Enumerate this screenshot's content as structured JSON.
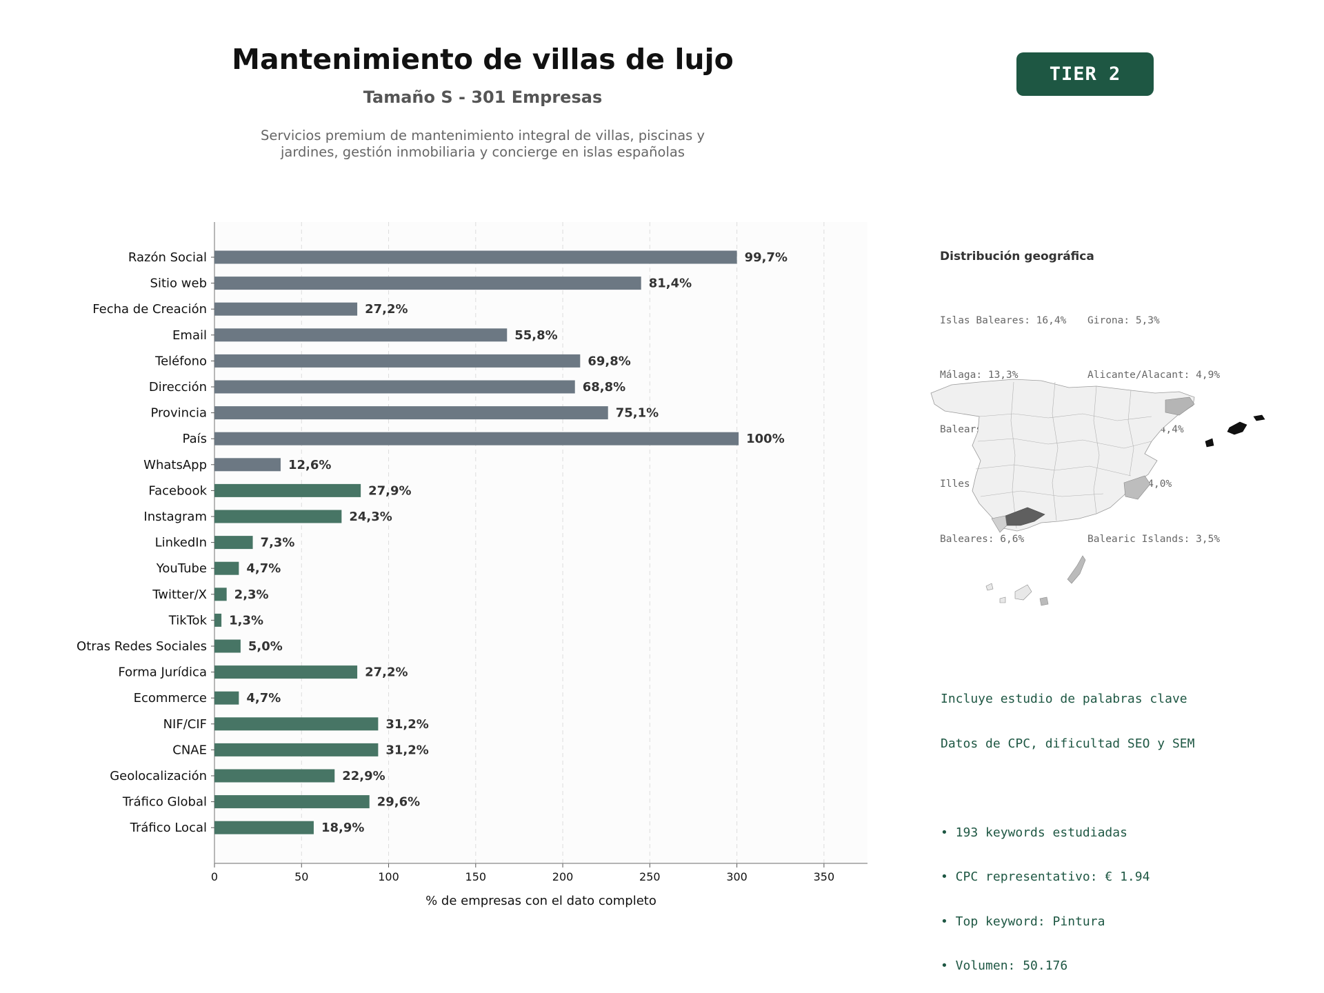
{
  "header": {
    "title": "Mantenimiento de villas de lujo",
    "subtitle": "Tamaño S - 301 Empresas",
    "description_line1": "Servicios premium de mantenimiento integral de villas, piscinas y",
    "description_line2": "jardines, gestión inmobiliaria y concierge en islas españolas",
    "tier_badge": "TIER 2"
  },
  "chart_data": {
    "type": "bar",
    "orientation": "horizontal",
    "title": "",
    "xlabel": "% de empresas con el dato completo",
    "ylabel": "",
    "xlim": [
      0,
      375
    ],
    "xticks": [
      0,
      50,
      100,
      150,
      200,
      250,
      300,
      350
    ],
    "grid": "vertical dashed",
    "categories": [
      "Razón Social",
      "Sitio web",
      "Fecha de Creación",
      "Email",
      "Teléfono",
      "Dirección",
      "Provincia",
      "País",
      "WhatsApp",
      "Facebook",
      "Instagram",
      "LinkedIn",
      "YouTube",
      "Twitter/X",
      "TikTok",
      "Otras Redes Sociales",
      "Forma Jurídica",
      "Ecommerce",
      "NIF/CIF",
      "CNAE",
      "Geolocalización",
      "Tráfico Global",
      "Tráfico Local"
    ],
    "values": [
      300,
      245,
      82,
      168,
      210,
      207,
      226,
      301,
      38,
      84,
      73,
      22,
      14,
      7,
      4,
      15,
      82,
      14,
      94,
      94,
      69,
      89,
      57
    ],
    "data_labels": [
      "99,7%",
      "81,4%",
      "27,2%",
      "55,8%",
      "69,8%",
      "68,8%",
      "75,1%",
      "100%",
      "12,6%",
      "27,9%",
      "24,3%",
      "7,3%",
      "4,7%",
      "2,3%",
      "1,3%",
      "5,0%",
      "27,2%",
      "4,7%",
      "31,2%",
      "31,2%",
      "22,9%",
      "29,6%",
      "18,9%"
    ],
    "bar_groups": [
      "basic",
      "basic",
      "basic",
      "basic",
      "basic",
      "basic",
      "basic",
      "basic",
      "basic",
      "digital",
      "digital",
      "digital",
      "digital",
      "digital",
      "digital",
      "digital",
      "digital",
      "digital",
      "digital",
      "digital",
      "digital",
      "digital",
      "digital"
    ],
    "colors": {
      "basic": "#6c7883",
      "digital": "#477565"
    }
  },
  "geo": {
    "title": "Distribución geográfica",
    "col1": [
      "Islas Baleares: 16,4%",
      "Málaga: 13,3%",
      "Balears, Illes: 13,3%",
      "Illes Balears: 13,3%",
      "Baleares: 6,6%"
    ],
    "col2": [
      "Girona: 5,3%",
      "Alicante/Alacant: 4,9%",
      "Las Palmas: 4,4%",
      "Alicante: 4,0%",
      "Balearic Islands: 3,5%"
    ]
  },
  "keywords": {
    "line1": "Incluye estudio de palabras clave",
    "line2": "Datos de CPC, dificultad SEO y SEM",
    "bullets": [
      "• 193 keywords estudiadas",
      "• CPC representativo: € 1.94",
      "• Top keyword: Pintura",
      "• Volumen: 50.176"
    ]
  }
}
